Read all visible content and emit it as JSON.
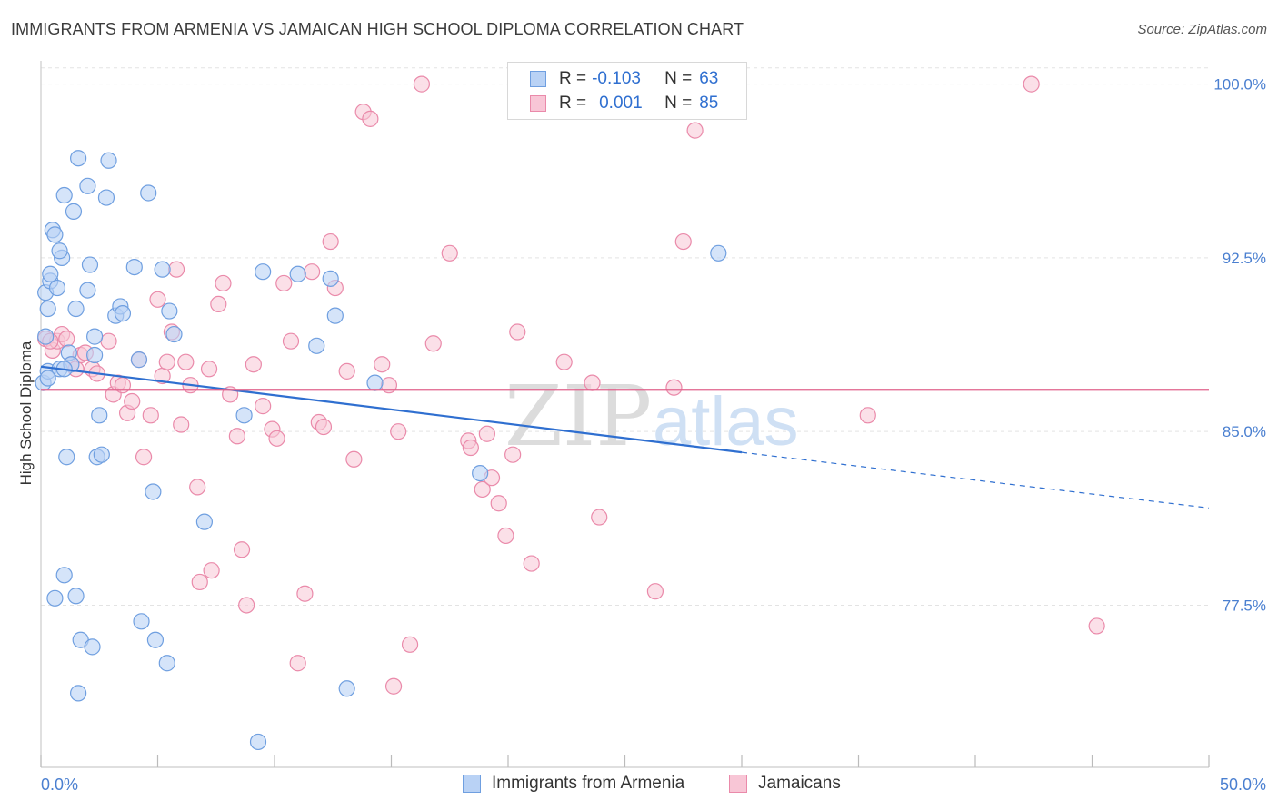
{
  "title": "IMMIGRANTS FROM ARMENIA VS JAMAICAN HIGH SCHOOL DIPLOMA CORRELATION CHART",
  "source": "Source: ZipAtlas.com",
  "watermark": {
    "zip": "ZIP",
    "atlas": "atlas"
  },
  "legend": {
    "r_label": "R =",
    "n_label": "N =",
    "rows": [
      {
        "r": "-0.103",
        "n": "63"
      },
      {
        "r": "0.001",
        "n": "85"
      }
    ]
  },
  "bottom_legend": [
    "Immigrants from Armenia",
    "Jamaicans"
  ],
  "colors": {
    "blue_fill": "#b9d2f5",
    "blue_stroke": "#6f9fe0",
    "blue_line": "#2f6fd0",
    "pink_fill": "#f8c6d6",
    "pink_stroke": "#ea8aaa",
    "pink_line": "#e0628c",
    "axis_text": "#4a7fd0",
    "grid": "#e3e3e3"
  },
  "chart_data": {
    "type": "scatter",
    "title": "IMMIGRANTS FROM ARMENIA VS JAMAICAN HIGH SCHOOL DIPLOMA CORRELATION CHART",
    "xlabel": "",
    "ylabel": "High School Diploma",
    "xlim": [
      0,
      50
    ],
    "ylim": [
      70.5,
      101.2
    ],
    "x_tick_labels": [
      "0.0%",
      "50.0%"
    ],
    "y_ticks": [
      100.0,
      92.5,
      85.0,
      77.5
    ],
    "y_tick_labels": [
      "100.0%",
      "92.5%",
      "85.0%",
      "77.5%"
    ],
    "grid": true,
    "series": [
      {
        "name": "Immigrants from Armenia",
        "color": "blue",
        "trend": {
          "x0": 0,
          "y0": 87.8,
          "x1": 30,
          "y1": 84.1,
          "dashed_to_x": 50,
          "dashed_to_y": 81.7
        },
        "points": [
          [
            0.1,
            87.1
          ],
          [
            0.2,
            91.0
          ],
          [
            0.2,
            89.1
          ],
          [
            0.3,
            90.3
          ],
          [
            0.3,
            87.6
          ],
          [
            0.4,
            91.5
          ],
          [
            0.4,
            91.8
          ],
          [
            0.5,
            93.7
          ],
          [
            0.6,
            93.5
          ],
          [
            0.7,
            91.2
          ],
          [
            0.8,
            87.7
          ],
          [
            0.9,
            92.5
          ],
          [
            1.0,
            95.2
          ],
          [
            1.0,
            78.8
          ],
          [
            1.1,
            83.9
          ],
          [
            1.2,
            88.4
          ],
          [
            1.3,
            87.9
          ],
          [
            1.4,
            94.5
          ],
          [
            1.5,
            90.3
          ],
          [
            1.5,
            77.9
          ],
          [
            1.6,
            73.7
          ],
          [
            1.6,
            96.8
          ],
          [
            1.7,
            76.0
          ],
          [
            2.0,
            95.6
          ],
          [
            2.0,
            91.1
          ],
          [
            2.1,
            92.2
          ],
          [
            2.2,
            75.7
          ],
          [
            2.3,
            89.1
          ],
          [
            2.4,
            83.9
          ],
          [
            2.5,
            85.7
          ],
          [
            2.6,
            84.0
          ],
          [
            2.8,
            95.1
          ],
          [
            2.9,
            96.7
          ],
          [
            3.2,
            90.0
          ],
          [
            3.4,
            90.4
          ],
          [
            3.5,
            90.1
          ],
          [
            4.0,
            92.1
          ],
          [
            4.2,
            88.1
          ],
          [
            4.3,
            76.8
          ],
          [
            4.6,
            95.3
          ],
          [
            4.8,
            82.4
          ],
          [
            4.9,
            76.0
          ],
          [
            5.2,
            92.0
          ],
          [
            5.4,
            75.0
          ],
          [
            5.5,
            90.2
          ],
          [
            5.7,
            89.2
          ],
          [
            7.0,
            81.1
          ],
          [
            8.7,
            85.7
          ],
          [
            9.3,
            71.6
          ],
          [
            9.5,
            91.9
          ],
          [
            11.0,
            91.8
          ],
          [
            11.8,
            88.7
          ],
          [
            12.4,
            91.6
          ],
          [
            12.6,
            90.0
          ],
          [
            13.1,
            73.9
          ],
          [
            14.3,
            87.1
          ],
          [
            18.8,
            83.2
          ],
          [
            29.0,
            92.7
          ],
          [
            0.6,
            77.8
          ],
          [
            1.0,
            87.7
          ],
          [
            0.8,
            92.8
          ],
          [
            0.3,
            87.3
          ],
          [
            2.3,
            88.3
          ]
        ]
      },
      {
        "name": "Jamaicans",
        "color": "pink",
        "trend": {
          "x0": 0,
          "y0": 86.8,
          "x1": 50,
          "y1": 86.8
        },
        "points": [
          [
            0.2,
            89.0
          ],
          [
            0.5,
            88.5
          ],
          [
            0.7,
            88.9
          ],
          [
            0.9,
            89.2
          ],
          [
            1.1,
            89.0
          ],
          [
            1.3,
            87.9
          ],
          [
            1.5,
            87.7
          ],
          [
            1.7,
            88.3
          ],
          [
            1.9,
            88.4
          ],
          [
            2.2,
            87.7
          ],
          [
            2.4,
            87.5
          ],
          [
            2.9,
            88.9
          ],
          [
            3.1,
            86.6
          ],
          [
            3.3,
            87.1
          ],
          [
            3.5,
            87.0
          ],
          [
            3.7,
            85.8
          ],
          [
            3.9,
            86.3
          ],
          [
            4.2,
            88.1
          ],
          [
            4.4,
            83.9
          ],
          [
            4.7,
            85.7
          ],
          [
            5.0,
            90.7
          ],
          [
            5.2,
            87.4
          ],
          [
            5.4,
            88.0
          ],
          [
            5.6,
            89.3
          ],
          [
            5.8,
            92.0
          ],
          [
            6.0,
            85.3
          ],
          [
            6.2,
            88.0
          ],
          [
            6.4,
            87.0
          ],
          [
            6.7,
            82.6
          ],
          [
            6.8,
            78.5
          ],
          [
            7.2,
            87.7
          ],
          [
            7.3,
            79.0
          ],
          [
            7.6,
            90.5
          ],
          [
            7.8,
            91.4
          ],
          [
            8.1,
            86.6
          ],
          [
            8.4,
            84.8
          ],
          [
            8.6,
            79.9
          ],
          [
            8.8,
            77.5
          ],
          [
            9.1,
            87.9
          ],
          [
            9.5,
            86.1
          ],
          [
            9.9,
            85.1
          ],
          [
            10.1,
            84.7
          ],
          [
            10.4,
            91.4
          ],
          [
            10.7,
            88.9
          ],
          [
            11.0,
            75.0
          ],
          [
            11.3,
            78.0
          ],
          [
            11.6,
            91.9
          ],
          [
            11.9,
            85.4
          ],
          [
            12.1,
            85.2
          ],
          [
            12.4,
            93.2
          ],
          [
            12.6,
            91.2
          ],
          [
            13.1,
            87.6
          ],
          [
            13.4,
            83.8
          ],
          [
            13.8,
            98.8
          ],
          [
            14.1,
            98.5
          ],
          [
            14.6,
            87.9
          ],
          [
            14.9,
            87.0
          ],
          [
            15.1,
            74.0
          ],
          [
            15.3,
            85.0
          ],
          [
            15.8,
            75.8
          ],
          [
            16.3,
            100.0
          ],
          [
            16.8,
            88.8
          ],
          [
            17.5,
            92.7
          ],
          [
            18.3,
            84.6
          ],
          [
            18.4,
            84.3
          ],
          [
            18.9,
            82.5
          ],
          [
            19.1,
            84.9
          ],
          [
            19.3,
            83.0
          ],
          [
            19.6,
            81.9
          ],
          [
            19.9,
            80.5
          ],
          [
            20.2,
            84.0
          ],
          [
            20.4,
            89.3
          ],
          [
            21.0,
            79.3
          ],
          [
            22.4,
            88.0
          ],
          [
            23.6,
            87.1
          ],
          [
            23.9,
            81.3
          ],
          [
            26.3,
            78.1
          ],
          [
            27.1,
            86.9
          ],
          [
            27.5,
            93.2
          ],
          [
            28.0,
            98.0
          ],
          [
            27.3,
            100.0
          ],
          [
            35.4,
            85.7
          ],
          [
            42.4,
            100.0
          ],
          [
            45.2,
            76.6
          ],
          [
            0.4,
            88.9
          ]
        ]
      }
    ]
  }
}
